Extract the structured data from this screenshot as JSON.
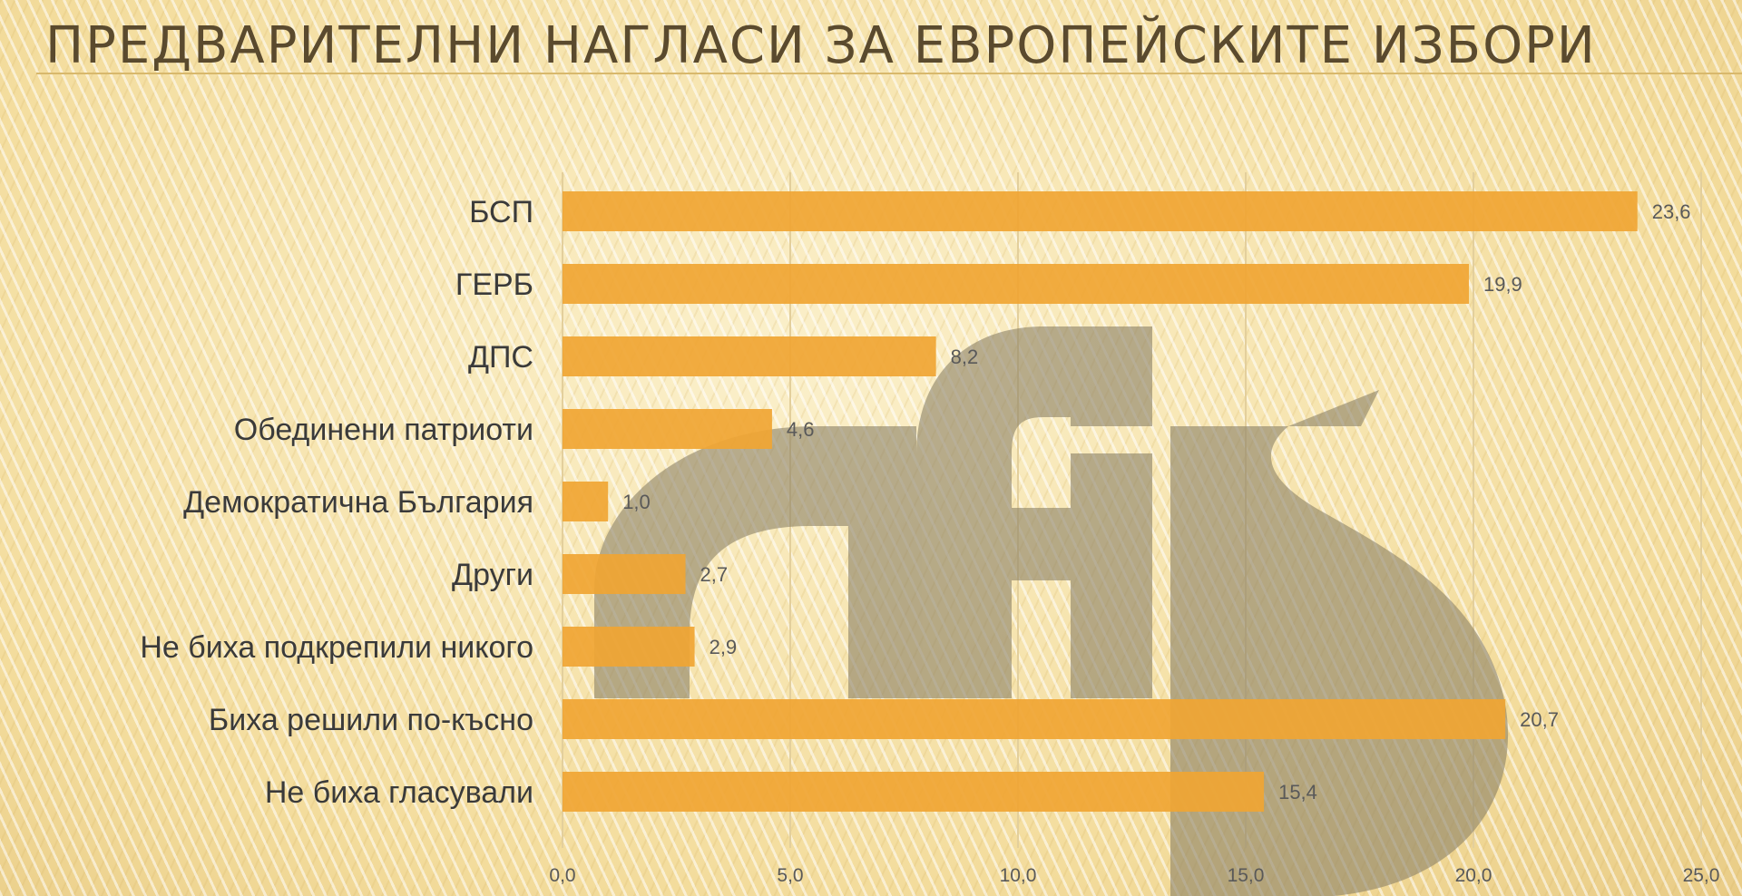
{
  "slide": {
    "title": "ПРЕДВАРИТЕЛНИ НАГЛАСИ ЗА ЕВРОПЕЙСКИТЕ ИЗБОРИ"
  },
  "watermark": {
    "text": "afis"
  },
  "colors": {
    "bar": "#f0a533",
    "watermark": "#8a8066",
    "grid": "#e3cf9c",
    "text": "#3a3a3a"
  },
  "chart_data": {
    "type": "bar",
    "orientation": "horizontal",
    "categories": [
      "БСП",
      "ГЕРБ",
      "ДПС",
      "Обединени патриоти",
      "Демократична България",
      "Други",
      "Не биха подкрепили никого",
      "Биха решили по-късно",
      "Не биха гласували"
    ],
    "values": [
      23.6,
      19.9,
      8.2,
      4.6,
      1.0,
      2.7,
      2.9,
      20.7,
      15.4
    ],
    "value_labels": [
      "23,6",
      "19,9",
      "8,2",
      "4,6",
      "1,0",
      "2,7",
      "2,9",
      "20,7",
      "15,4"
    ],
    "xlim": [
      0,
      25
    ],
    "xticks": [
      0,
      5,
      10,
      15,
      20,
      25
    ],
    "xtick_labels": [
      "0,0",
      "5,0",
      "10,0",
      "15,0",
      "20,0",
      "25,0"
    ],
    "grid": true,
    "legend": false
  }
}
